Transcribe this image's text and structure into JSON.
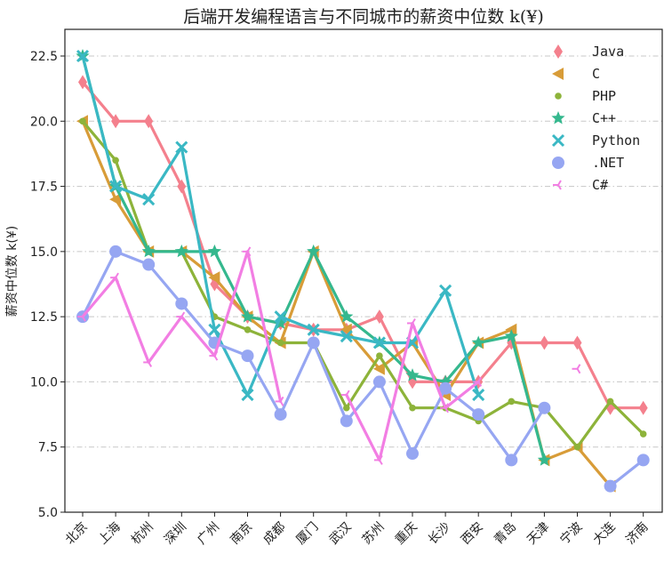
{
  "chart_data": {
    "type": "line",
    "title": "后端开发编程语言与不同城市的薪资中位数 k(¥)",
    "xlabel": "",
    "ylabel": "薪资中位数 k(¥)",
    "ylim": [
      5.0,
      23.5
    ],
    "yticks": [
      "5.0",
      "7.5",
      "10.0",
      "12.5",
      "15.0",
      "17.5",
      "20.0",
      "22.5"
    ],
    "grid": "y-dashed",
    "legend_position": "top-right",
    "categories": [
      "北京",
      "上海",
      "杭州",
      "深圳",
      "广州",
      "南京",
      "成都",
      "厦门",
      "武汉",
      "苏州",
      "重庆",
      "长沙",
      "西安",
      "青岛",
      "天津",
      "宁波",
      "大连",
      "济南"
    ],
    "series": [
      {
        "name": "Java",
        "color": "#f4808d",
        "marker": "diamond",
        "values": [
          21.5,
          20,
          20,
          17.5,
          13.75,
          12.5,
          12.25,
          12,
          12,
          12.5,
          10,
          10,
          10,
          11.5,
          11.5,
          11.5,
          9,
          9
        ]
      },
      {
        "name": "C",
        "color": "#d89c38",
        "marker": "triangle-left",
        "values": [
          20,
          17,
          15,
          15,
          14,
          12.5,
          11.5,
          15,
          12,
          10.5,
          11.5,
          9.5,
          11.5,
          12,
          7,
          7.5,
          6,
          null
        ]
      },
      {
        "name": "PHP",
        "color": "#8db33a",
        "marker": "dot",
        "values": [
          20,
          18.5,
          15,
          15,
          12.5,
          12,
          11.5,
          11.5,
          9,
          11,
          9,
          9,
          8.5,
          9.25,
          9,
          7.5,
          9.25,
          8
        ]
      },
      {
        "name": "C++",
        "color": "#35b88e",
        "marker": "star",
        "values": [
          22.5,
          17.5,
          15,
          15,
          15,
          12.5,
          12.25,
          15,
          12.5,
          11.5,
          10.25,
          10,
          11.5,
          11.75,
          7,
          null,
          null,
          null
        ]
      },
      {
        "name": "Python",
        "color": "#3ab8c4",
        "marker": "x",
        "values": [
          22.5,
          17.5,
          17,
          19,
          12,
          9.5,
          12.5,
          12,
          11.75,
          11.5,
          11.5,
          13.5,
          9.5,
          null,
          null,
          null,
          null,
          null
        ]
      },
      {
        "name": ".NET",
        "color": "#96a6f2",
        "marker": "circle",
        "values": [
          12.5,
          15,
          14.5,
          13,
          11.5,
          11,
          8.75,
          11.5,
          8.5,
          10,
          7.25,
          9.75,
          8.75,
          7,
          9,
          null,
          6,
          7
        ]
      },
      {
        "name": "C#",
        "color": "#f27ee3",
        "marker": "tri-left",
        "values": [
          12.5,
          14,
          10.75,
          12.5,
          11,
          15,
          9.25,
          null,
          9.5,
          7,
          12.25,
          9,
          10,
          null,
          null,
          10.5,
          null,
          null
        ]
      }
    ]
  }
}
